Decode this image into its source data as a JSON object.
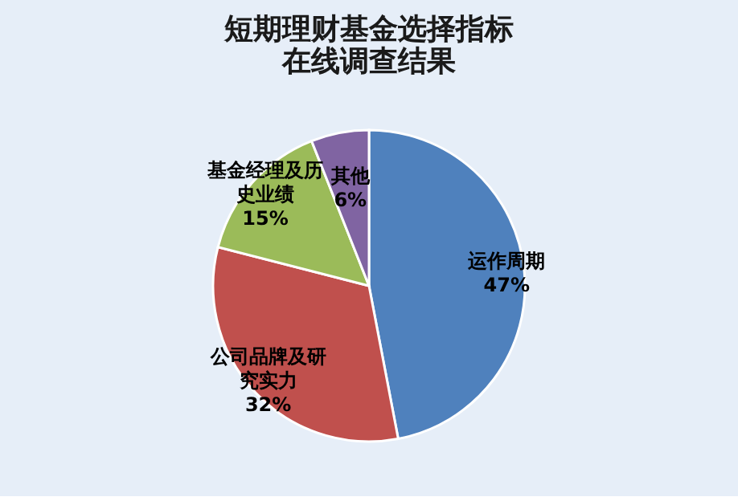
{
  "chart_data": {
    "type": "pie",
    "title": "短期理财基金选择指标",
    "subtitle": "在线调查结果",
    "categories": [
      "运作周期",
      "公司品牌及研究实力",
      "基金经理及历史业绩",
      "其他"
    ],
    "values": [
      47,
      32,
      15,
      6
    ],
    "value_labels": [
      "47%",
      "32%",
      "15%",
      "6%"
    ],
    "colors": [
      "#4f81bd",
      "#c0504d",
      "#9bbb59",
      "#8064a2"
    ],
    "legend": false
  }
}
